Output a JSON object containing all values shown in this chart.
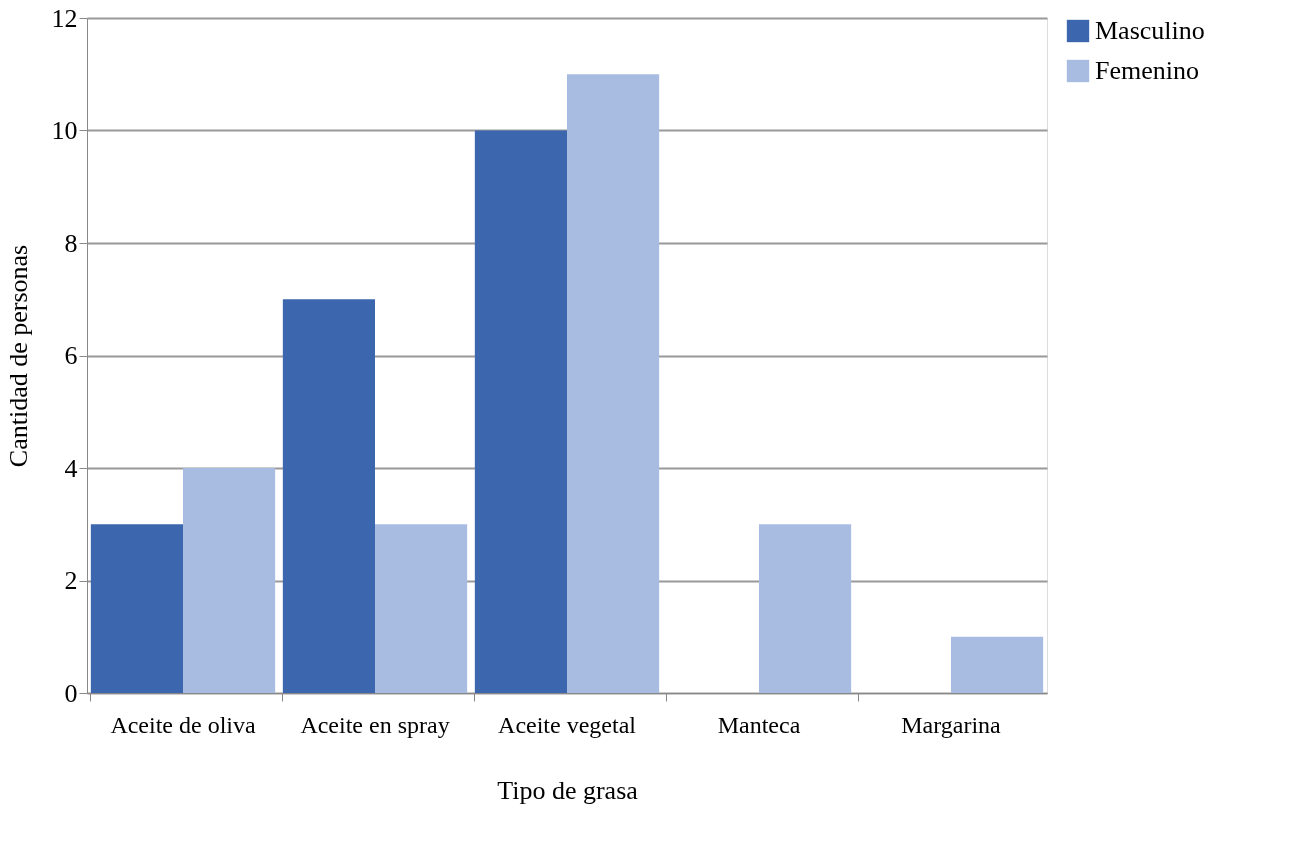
{
  "chart_data": {
    "type": "bar",
    "xlabel": "Tipo de grasa",
    "ylabel": "Cantidad de personas",
    "categories": [
      "Aceite de oliva",
      "Aceite en spray",
      "Aceite vegetal",
      "Manteca",
      "Margarina"
    ],
    "series": [
      {
        "name": "Masculino",
        "color": "#3c67ae",
        "values": [
          3,
          7,
          10,
          0,
          0
        ]
      },
      {
        "name": "Femenino",
        "color": "#a8bce2",
        "values": [
          4,
          3,
          11,
          3,
          1
        ]
      }
    ],
    "ylim": [
      0,
      12
    ],
    "yticks": [
      0,
      2,
      4,
      6,
      8,
      10,
      12
    ],
    "grid": "y",
    "legend": "right"
  }
}
